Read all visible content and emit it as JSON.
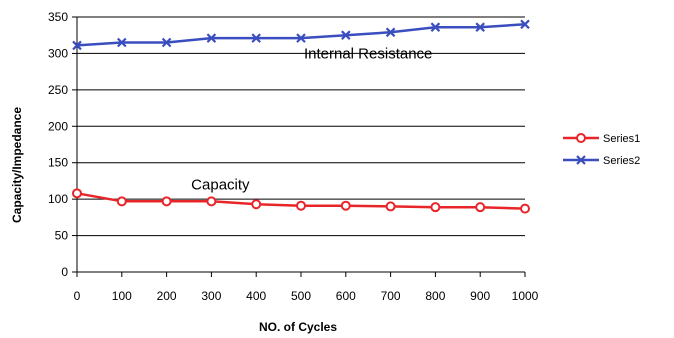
{
  "chart_data": {
    "type": "line",
    "xlabel": "NO. of Cycles",
    "ylabel": "Capacity/Impedance",
    "x": [
      0,
      100,
      200,
      300,
      400,
      500,
      600,
      700,
      800,
      900,
      1000
    ],
    "xticks": [
      "0",
      "100",
      "200",
      "300",
      "400",
      "500",
      "600",
      "700",
      "800",
      "900",
      "1000"
    ],
    "yticks": [
      "0",
      "50",
      "100",
      "150",
      "200",
      "250",
      "300",
      "350"
    ],
    "xlim": [
      0,
      1000
    ],
    "ylim": [
      0,
      350
    ],
    "grid": "horizontal major gridlines",
    "legend_position": "right",
    "series": [
      {
        "name": "Series1",
        "color": "#e8262a",
        "marker": "circle",
        "values": [
          108,
          97,
          97,
          97,
          93,
          91,
          91,
          90,
          89,
          89,
          87
        ]
      },
      {
        "name": "Series2",
        "color": "#3a4ec0",
        "marker": "x",
        "values": [
          311,
          315,
          315,
          321,
          321,
          321,
          325,
          329,
          336,
          336,
          340
        ]
      }
    ],
    "annotations": [
      {
        "text": "Internal Resistance",
        "x": 650,
        "y": 300
      },
      {
        "text": "Capacity",
        "x": 320,
        "y": 120
      }
    ]
  }
}
